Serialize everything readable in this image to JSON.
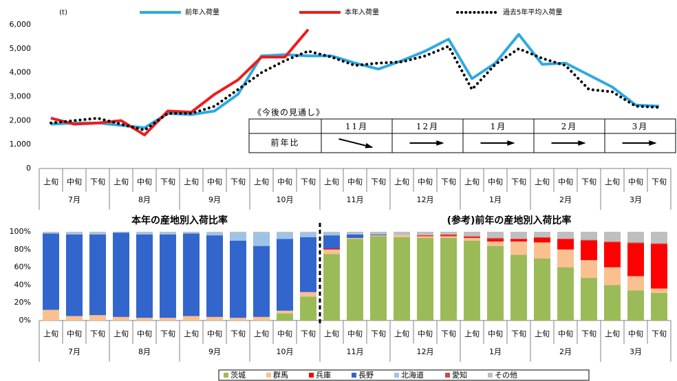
{
  "chart_data": [
    {
      "type": "line",
      "y_unit": "(t)",
      "categories": [
        "上旬",
        "中旬",
        "下旬",
        "上旬",
        "中旬",
        "下旬",
        "上旬",
        "中旬",
        "下旬",
        "上旬",
        "中旬",
        "下旬",
        "上旬",
        "中旬",
        "下旬",
        "上旬",
        "中旬",
        "下旬",
        "上旬",
        "中旬",
        "下旬",
        "上旬",
        "中旬",
        "下旬",
        "上旬",
        "中旬",
        "下旬"
      ],
      "groups": [
        "7月",
        "8月",
        "9月",
        "10月",
        "11月",
        "12月",
        "1月",
        "2月",
        "3月"
      ],
      "ylim": [
        0,
        6000
      ],
      "yticks": [
        0,
        {
          "value": 1000,
          "label": "1,000"
        },
        {
          "value": 2000,
          "label": "2,000"
        },
        {
          "value": 3000,
          "label": "3,000"
        },
        {
          "value": 4000,
          "label": "4,000"
        },
        {
          "value": 5000,
          "label": "5,000"
        },
        {
          "value": 6000,
          "label": "6,000"
        }
      ],
      "series": [
        {
          "name": "前年入荷量",
          "color": "#2eaae1",
          "linestyle": "solid",
          "values": [
            1850,
            1900,
            1900,
            1800,
            1700,
            2300,
            2250,
            2400,
            3100,
            4700,
            4750,
            4700,
            4700,
            4400,
            4150,
            4500,
            4900,
            5400,
            3750,
            4400,
            5600,
            4350,
            4400,
            3900,
            3400,
            2650,
            2600
          ]
        },
        {
          "name": "本年入荷量",
          "color": "#ee1c1c",
          "linestyle": "solid",
          "values": [
            2100,
            1850,
            1900,
            2000,
            1400,
            2400,
            2350,
            3100,
            3700,
            4650,
            4650,
            5800,
            null,
            null,
            null,
            null,
            null,
            null,
            null,
            null,
            null,
            null,
            null,
            null,
            null,
            null,
            null
          ]
        },
        {
          "name": "過去5年平均入荷量",
          "color": "#000000",
          "linestyle": "dotted",
          "values": [
            1900,
            2000,
            2100,
            1850,
            1600,
            2300,
            2300,
            2600,
            3300,
            4000,
            4500,
            4900,
            4650,
            4300,
            4400,
            4450,
            4700,
            5100,
            3300,
            4350,
            5000,
            4600,
            4300,
            3300,
            3200,
            2600,
            2550
          ]
        }
      ],
      "outlook": {
        "title": "《今後の見通し》",
        "columns": [
          "11月",
          "12月",
          "1月",
          "2月",
          "3月"
        ],
        "row_label": "前年比",
        "trend": [
          "down",
          "flat",
          "flat",
          "flat",
          "flat"
        ]
      }
    },
    {
      "type": "stacked_bar",
      "titles": [
        "本年の産地別入荷比率",
        "(参考)前年の産地別入荷比率"
      ],
      "split_index": 12,
      "categories": [
        "上旬",
        "中旬",
        "下旬",
        "上旬",
        "中旬",
        "下旬",
        "上旬",
        "中旬",
        "下旬",
        "上旬",
        "中旬",
        "下旬",
        "上旬",
        "中旬",
        "下旬",
        "上旬",
        "中旬",
        "下旬",
        "上旬",
        "中旬",
        "下旬",
        "上旬",
        "中旬",
        "下旬",
        "上旬",
        "中旬",
        "下旬"
      ],
      "groups": [
        "7月",
        "8月",
        "9月",
        "10月",
        "11月",
        "12月",
        "1月",
        "2月",
        "3月"
      ],
      "ylim": [
        0,
        100
      ],
      "yticks": [
        {
          "value": 0,
          "label": "0%"
        },
        {
          "value": 20,
          "label": "20%"
        },
        {
          "value": 40,
          "label": "40%"
        },
        {
          "value": 60,
          "label": "60%"
        },
        {
          "value": 80,
          "label": "80%"
        },
        {
          "value": 100,
          "label": "100%"
        }
      ],
      "series": [
        {
          "name": "茨城",
          "color": "#9bbb59",
          "values": [
            0,
            0,
            0,
            0,
            0,
            0,
            0,
            0,
            0,
            0,
            8,
            27,
            75,
            92,
            95,
            94,
            93,
            93,
            90,
            84,
            74,
            70,
            60,
            48,
            40,
            34,
            31
          ]
        },
        {
          "name": "群馬",
          "color": "#fac090",
          "values": [
            12,
            5,
            6,
            4,
            3,
            3,
            5,
            4,
            3,
            4,
            3,
            5,
            5,
            1,
            1,
            2,
            2,
            2,
            3,
            5,
            15,
            18,
            20,
            20,
            20,
            16,
            5
          ]
        },
        {
          "name": "兵庫",
          "color": "#ff0000",
          "values": [
            0,
            0,
            0,
            0,
            0,
            0,
            0,
            0,
            0,
            0,
            0,
            0,
            1,
            0,
            0,
            0,
            1,
            1,
            1,
            3,
            3,
            5,
            12,
            22,
            28,
            37,
            50
          ]
        },
        {
          "name": "長野",
          "color": "#3366cc",
          "values": [
            86,
            92,
            91,
            95,
            94,
            94,
            93,
            92,
            87,
            80,
            81,
            62,
            15,
            4,
            1,
            0,
            0,
            0,
            0,
            0,
            0,
            0,
            0,
            0,
            0,
            0,
            0
          ]
        },
        {
          "name": "北海道",
          "color": "#9dc3e6",
          "values": [
            1,
            2,
            2,
            1,
            2,
            2,
            1,
            3,
            9,
            15,
            7,
            5,
            3,
            1,
            0,
            0,
            0,
            0,
            0,
            0,
            0,
            0,
            0,
            0,
            0,
            0,
            0
          ]
        },
        {
          "name": "愛知",
          "color": "#c0504d",
          "values": [
            0,
            0,
            0,
            0,
            0,
            0,
            0,
            0,
            0,
            0,
            0,
            0,
            0,
            0,
            0,
            0,
            0,
            1,
            1,
            1,
            0,
            1,
            0,
            1,
            1,
            1,
            1
          ]
        },
        {
          "name": "その他",
          "color": "#bfbfbf",
          "values": [
            1,
            1,
            1,
            0,
            1,
            1,
            1,
            1,
            1,
            1,
            1,
            1,
            1,
            2,
            3,
            4,
            4,
            3,
            5,
            7,
            8,
            6,
            8,
            9,
            11,
            12,
            13
          ]
        }
      ]
    }
  ]
}
